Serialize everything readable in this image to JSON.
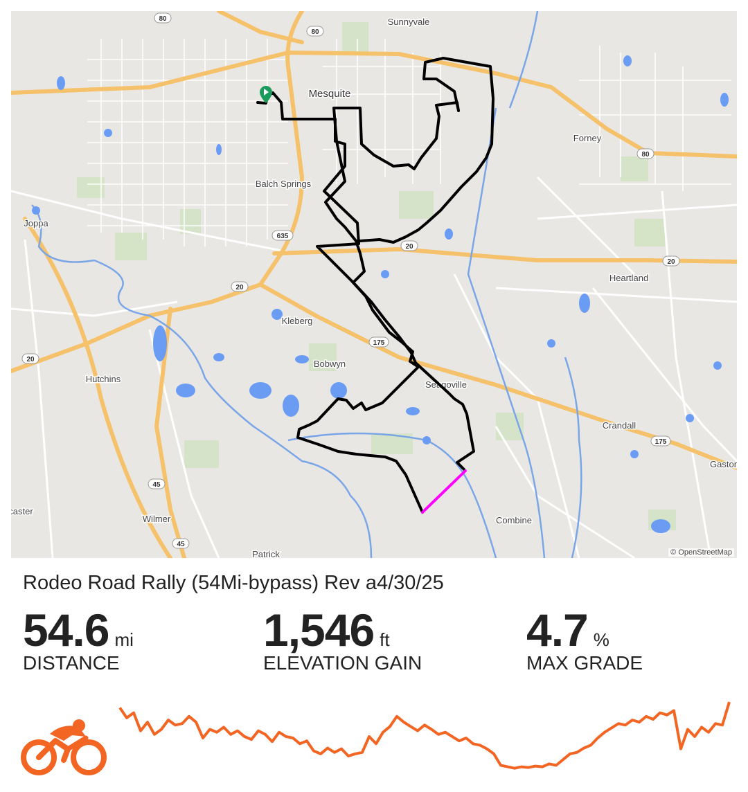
{
  "route": {
    "title": "Rodeo Road Rally (54Mi-bypass) Rev a4/30/25",
    "color": "#000000",
    "bypass_color": "#ff00ff",
    "start_marker_color": "#1a9b5c"
  },
  "map": {
    "attribution": "© OpenStreetMap",
    "places": [
      "Sunnyvale",
      "Mesquite",
      "Forney",
      "Balch Springs",
      "Joppa",
      "Heartland",
      "Kleberg",
      "Bobwyn",
      "Hutchins",
      "Seagoville",
      "Crandall",
      "Gaston",
      "Combine",
      "caster",
      "Wilmer",
      "Patrick"
    ],
    "shields": [
      "80",
      "80",
      "80",
      "635",
      "20",
      "20",
      "20",
      "20",
      "175",
      "175",
      "45",
      "45"
    ]
  },
  "stats": [
    {
      "value": "54.6",
      "unit": "mi",
      "label": "DISTANCE"
    },
    {
      "value": "1,546",
      "unit": "ft",
      "label": "ELEVATION GAIN"
    },
    {
      "value": "4.7",
      "unit": "%",
      "label": "MAX GRADE"
    }
  ],
  "elevation_profile": {
    "color": "#f26522",
    "relative_elevation": [
      0.92,
      0.78,
      0.85,
      0.6,
      0.72,
      0.55,
      0.62,
      0.75,
      0.68,
      0.7,
      0.8,
      0.72,
      0.5,
      0.62,
      0.58,
      0.65,
      0.55,
      0.6,
      0.52,
      0.48,
      0.6,
      0.55,
      0.45,
      0.58,
      0.52,
      0.5,
      0.42,
      0.46,
      0.32,
      0.28,
      0.36,
      0.3,
      0.35,
      0.25,
      0.28,
      0.3,
      0.52,
      0.42,
      0.58,
      0.66,
      0.8,
      0.72,
      0.66,
      0.6,
      0.68,
      0.62,
      0.55,
      0.58,
      0.52,
      0.46,
      0.5,
      0.42,
      0.4,
      0.35,
      0.28,
      0.12,
      0.1,
      0.08,
      0.1,
      0.09,
      0.11,
      0.1,
      0.14,
      0.12,
      0.2,
      0.28,
      0.3,
      0.36,
      0.4,
      0.5,
      0.58,
      0.64,
      0.7,
      0.68,
      0.75,
      0.72,
      0.8,
      0.76,
      0.85,
      0.82,
      0.88,
      0.35,
      0.62,
      0.52,
      0.65,
      0.58,
      0.7,
      0.68,
      1.0
    ]
  },
  "activity_icon": "cycling-icon"
}
